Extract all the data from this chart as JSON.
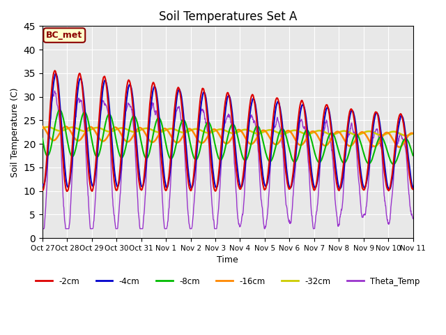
{
  "title": "Soil Temperatures Set A",
  "xlabel": "Time",
  "ylabel": "Soil Temperature (C)",
  "ylim": [
    0,
    45
  ],
  "annotation": "BC_met",
  "legend_labels": [
    "-2cm",
    "-4cm",
    "-8cm",
    "-16cm",
    "-32cm",
    "Theta_Temp"
  ],
  "legend_colors": [
    "#dd0000",
    "#0000cc",
    "#00bb00",
    "#ff8800",
    "#cccc00",
    "#9933cc"
  ],
  "bg_color": "#e8e8e8",
  "x_tick_labels": [
    "Oct 27",
    "Oct 28",
    "Oct 29",
    "Oct 30",
    "Oct 31",
    "Nov 1",
    "Nov 2",
    "Nov 3",
    "Nov 4",
    "Nov 5",
    "Nov 6",
    "Nov 7",
    "Nov 8",
    "Nov 9",
    "Nov 10",
    "Nov 11"
  ],
  "num_days": 15,
  "points_per_day": 96
}
